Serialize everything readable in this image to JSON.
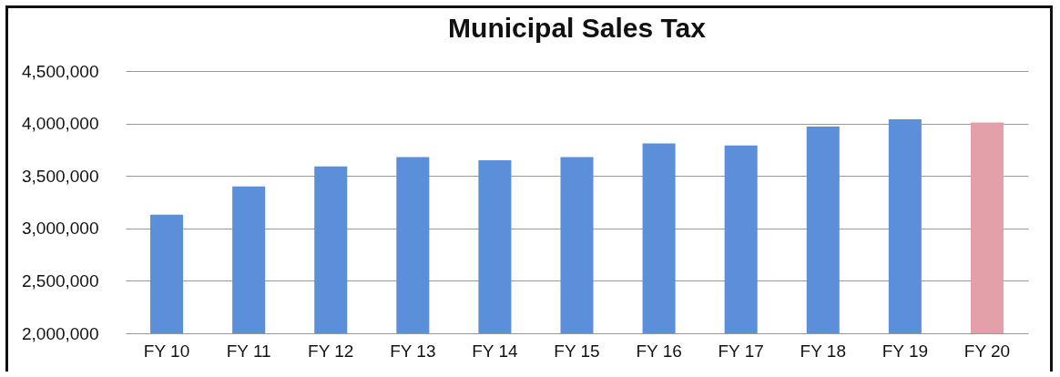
{
  "chart_data": {
    "type": "bar",
    "title": "Municipal Sales Tax",
    "categories": [
      "FY 10",
      "FY 11",
      "FY 12",
      "FY 13",
      "FY 14",
      "FY 15",
      "FY 16",
      "FY 17",
      "FY 18",
      "FY 19",
      "FY 20"
    ],
    "values": [
      3130000,
      3400000,
      3590000,
      3680000,
      3650000,
      3680000,
      3810000,
      3790000,
      3970000,
      4040000,
      4010000
    ],
    "colors": [
      "#5b8fd9",
      "#5b8fd9",
      "#5b8fd9",
      "#5b8fd9",
      "#5b8fd9",
      "#5b8fd9",
      "#5b8fd9",
      "#5b8fd9",
      "#5b8fd9",
      "#5b8fd9",
      "#e3a0a8"
    ],
    "ylim": [
      2000000,
      4500000
    ],
    "yticks": [
      {
        "value": 2000000,
        "label": "2,000,000"
      },
      {
        "value": 2500000,
        "label": "2,500,000"
      },
      {
        "value": 3000000,
        "label": "3,000,000"
      },
      {
        "value": 3500000,
        "label": "3,500,000"
      },
      {
        "value": 4000000,
        "label": "4,000,000"
      },
      {
        "value": 4500000,
        "label": "4,500,000"
      }
    ],
    "grid": "y"
  }
}
